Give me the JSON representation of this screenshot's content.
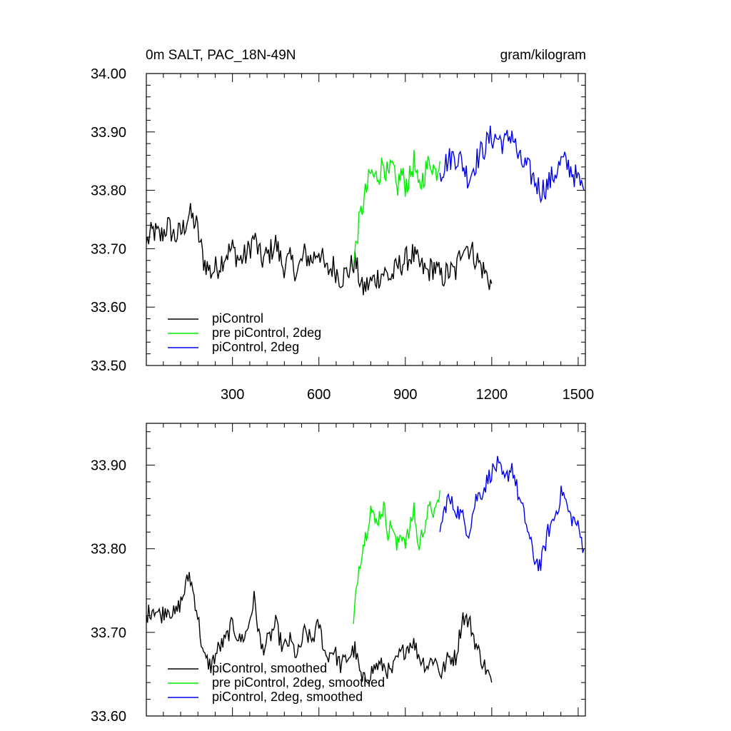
{
  "header": {
    "title": "0m SALT, PAC_18N-49N",
    "units": "gram/kilogram"
  },
  "chart_data": [
    {
      "type": "line",
      "title": "0m SALT, PAC_18N-49N",
      "units": "gram/kilogram",
      "xlim": [
        1,
        1525
      ],
      "ylim": [
        33.5,
        34.0
      ],
      "x_tick_labels": [
        "300",
        "600",
        "900",
        "1200",
        "1500"
      ],
      "x_ticks": [
        300,
        600,
        900,
        1200,
        1500
      ],
      "y_tick_labels": [
        "34.00",
        "33.90",
        "33.80",
        "33.70",
        "33.60",
        "33.50"
      ],
      "y_ticks": [
        34.0,
        33.9,
        33.8,
        33.7,
        33.6,
        33.5
      ],
      "legend_position": "bottom-left",
      "series": [
        {
          "name": "piControl",
          "color": "#000000",
          "x": [
            1,
            25,
            50,
            75,
            100,
            125,
            150,
            175,
            200,
            225,
            250,
            275,
            300,
            325,
            350,
            375,
            400,
            425,
            450,
            475,
            500,
            525,
            550,
            575,
            600,
            625,
            650,
            675,
            700,
            725,
            750,
            775,
            800,
            825,
            850,
            875,
            900,
            925,
            950,
            975,
            1000,
            1025,
            1050,
            1075,
            1100,
            1125,
            1150,
            1175,
            1200
          ],
          "y": [
            33.71,
            33.73,
            33.72,
            33.74,
            33.72,
            33.73,
            33.76,
            33.74,
            33.68,
            33.66,
            33.67,
            33.69,
            33.7,
            33.68,
            33.69,
            33.72,
            33.68,
            33.69,
            33.71,
            33.67,
            33.68,
            33.66,
            33.69,
            33.68,
            33.7,
            33.66,
            33.67,
            33.65,
            33.66,
            33.68,
            33.63,
            33.64,
            33.65,
            33.66,
            33.65,
            33.67,
            33.68,
            33.69,
            33.67,
            33.66,
            33.67,
            33.65,
            33.66,
            33.66,
            33.71,
            33.7,
            33.68,
            33.66,
            33.64
          ]
        },
        {
          "name": "pre piControl, 2deg",
          "color": "#00ee00",
          "x": [
            720,
            735,
            750,
            765,
            780,
            795,
            810,
            825,
            840,
            855,
            870,
            885,
            900,
            915,
            930,
            945,
            960,
            975,
            990,
            1005,
            1020
          ],
          "y": [
            33.67,
            33.73,
            33.77,
            33.8,
            33.83,
            33.82,
            33.83,
            33.85,
            33.82,
            33.84,
            33.8,
            33.83,
            33.81,
            33.82,
            33.85,
            33.8,
            33.82,
            33.84,
            33.85,
            33.83,
            33.85
          ]
        },
        {
          "name": "piControl, 2deg",
          "color": "#0000ee",
          "x": [
            1020,
            1045,
            1070,
            1095,
            1120,
            1145,
            1170,
            1195,
            1220,
            1245,
            1270,
            1295,
            1320,
            1345,
            1370,
            1395,
            1420,
            1445,
            1470,
            1495,
            1520
          ],
          "y": [
            33.83,
            33.85,
            33.86,
            33.85,
            33.82,
            33.85,
            33.87,
            33.89,
            33.89,
            33.88,
            33.9,
            33.85,
            33.84,
            33.82,
            33.8,
            33.81,
            33.83,
            33.85,
            33.84,
            33.82,
            33.8
          ]
        }
      ]
    },
    {
      "type": "line",
      "xlim": [
        1,
        1525
      ],
      "ylim": [
        33.6,
        33.95
      ],
      "x_ticks": [
        300,
        600,
        900,
        1200,
        1500
      ],
      "y_tick_labels": [
        "33.90",
        "33.80",
        "33.70",
        "33.60"
      ],
      "y_ticks": [
        33.9,
        33.8,
        33.7,
        33.6
      ],
      "legend_position": "bottom-left",
      "series": [
        {
          "name": "piControl, smoothed",
          "color": "#000000",
          "x": [
            1,
            25,
            50,
            75,
            100,
            125,
            150,
            175,
            200,
            225,
            250,
            275,
            300,
            325,
            350,
            375,
            400,
            425,
            450,
            475,
            500,
            525,
            550,
            575,
            600,
            625,
            650,
            675,
            700,
            725,
            750,
            775,
            800,
            825,
            850,
            875,
            900,
            925,
            950,
            975,
            1000,
            1025,
            1050,
            1075,
            1100,
            1125,
            1150,
            1175,
            1200
          ],
          "y": [
            33.72,
            33.73,
            33.72,
            33.73,
            33.72,
            33.74,
            33.77,
            33.73,
            33.67,
            33.66,
            33.68,
            33.69,
            33.71,
            33.69,
            33.7,
            33.74,
            33.68,
            33.69,
            33.71,
            33.68,
            33.69,
            33.67,
            33.7,
            33.69,
            33.71,
            33.67,
            33.68,
            33.66,
            33.67,
            33.68,
            33.64,
            33.65,
            33.66,
            33.66,
            33.65,
            33.67,
            33.68,
            33.69,
            33.67,
            33.66,
            33.67,
            33.65,
            33.67,
            33.67,
            33.72,
            33.71,
            33.68,
            33.66,
            33.64
          ]
        },
        {
          "name": "pre piControl, 2deg, smoothed",
          "color": "#00ee00",
          "x": [
            720,
            735,
            750,
            765,
            780,
            795,
            810,
            825,
            840,
            855,
            870,
            885,
            900,
            915,
            930,
            945,
            960,
            975,
            990,
            1005,
            1020
          ],
          "y": [
            33.71,
            33.77,
            33.8,
            33.82,
            33.85,
            33.83,
            33.84,
            33.85,
            33.82,
            33.83,
            33.8,
            33.82,
            33.81,
            33.82,
            33.85,
            33.8,
            33.82,
            33.84,
            33.85,
            33.84,
            33.87
          ]
        },
        {
          "name": "piControl, 2deg, smoothed",
          "color": "#0000ee",
          "x": [
            1020,
            1045,
            1070,
            1095,
            1120,
            1145,
            1170,
            1195,
            1220,
            1245,
            1270,
            1295,
            1320,
            1345,
            1370,
            1395,
            1420,
            1445,
            1470,
            1495,
            1520
          ],
          "y": [
            33.82,
            33.86,
            33.85,
            33.84,
            33.82,
            33.86,
            33.87,
            33.89,
            33.9,
            33.88,
            33.9,
            33.86,
            33.83,
            33.79,
            33.78,
            33.82,
            33.84,
            33.87,
            33.84,
            33.83,
            33.8
          ]
        }
      ]
    }
  ]
}
